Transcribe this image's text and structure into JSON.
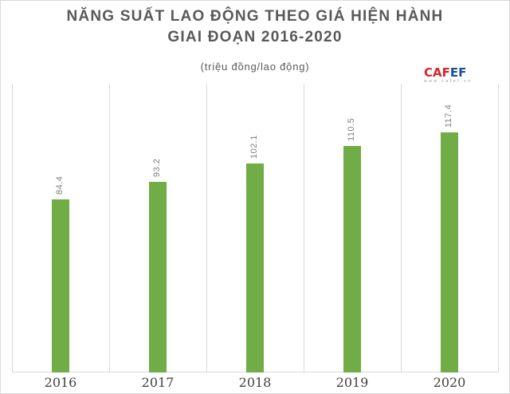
{
  "chart_data": {
    "type": "bar",
    "title": "NĂNG SUẤT LAO ĐỘNG THEO GIÁ HIỆN HÀNH GIAI ĐOẠN 2016-2020",
    "title_lines": [
      "NĂNG SUẤT LAO ĐỘNG THEO GIÁ HIỆN HÀNH",
      "GIAI ĐOẠN 2016-2020"
    ],
    "subtitle": "(triệu đồng/lao động)",
    "xlabel": "",
    "ylabel": "",
    "categories": [
      "2016",
      "2017",
      "2018",
      "2019",
      "2020"
    ],
    "values": [
      84.4,
      93.2,
      102.1,
      110.5,
      117.4
    ],
    "value_labels": [
      "84.4",
      "93.2",
      "102.1",
      "110.5",
      "117.4"
    ],
    "ylim": [
      0,
      141
    ],
    "grid": "vertical category separators",
    "legend": "none",
    "bar_color": "#70ad47"
  },
  "watermark": {
    "brand_red": "CAF",
    "brand_blue": "EF",
    "sub": "www.cafef.vn",
    "colors": {
      "red": "#d7262b",
      "blue": "#1d4e9c"
    }
  }
}
